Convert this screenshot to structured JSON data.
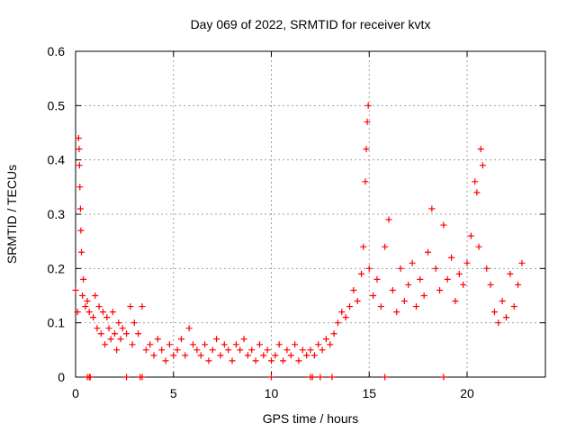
{
  "chart_data": {
    "type": "scatter",
    "title": "Day 069 of 2022, SRMTID for receiver kvtx",
    "xlabel": "GPS time / hours",
    "ylabel": "SRMTID / TECUs",
    "xlim": [
      0,
      24
    ],
    "ylim": [
      0,
      0.6
    ],
    "x_ticks": [
      0,
      5,
      10,
      15,
      20
    ],
    "x_tick_labels": [
      "0",
      "5",
      "10",
      "15",
      "20"
    ],
    "y_ticks": [
      0,
      0.1,
      0.2,
      0.3,
      0.4,
      0.5,
      0.6
    ],
    "y_tick_labels": [
      "0",
      "0.1",
      "0.2",
      "0.3",
      "0.4",
      "0.5",
      "0.6"
    ],
    "grid": true,
    "marker": "+",
    "color": "#ff0000",
    "series": [
      {
        "name": "SRMTID",
        "points": [
          [
            0.0,
            0.16
          ],
          [
            0.1,
            0.12
          ],
          [
            0.15,
            0.44
          ],
          [
            0.18,
            0.42
          ],
          [
            0.2,
            0.39
          ],
          [
            0.22,
            0.35
          ],
          [
            0.25,
            0.31
          ],
          [
            0.27,
            0.27
          ],
          [
            0.3,
            0.23
          ],
          [
            0.35,
            0.15
          ],
          [
            0.4,
            0.18
          ],
          [
            0.5,
            0.13
          ],
          [
            0.6,
            0.14
          ],
          [
            0.7,
            0.12
          ],
          [
            0.9,
            0.11
          ],
          [
            1.0,
            0.15
          ],
          [
            1.1,
            0.09
          ],
          [
            1.2,
            0.13
          ],
          [
            1.3,
            0.08
          ],
          [
            1.4,
            0.12
          ],
          [
            1.5,
            0.06
          ],
          [
            1.6,
            0.11
          ],
          [
            1.7,
            0.09
          ],
          [
            1.8,
            0.07
          ],
          [
            1.9,
            0.12
          ],
          [
            2.0,
            0.08
          ],
          [
            2.1,
            0.05
          ],
          [
            2.2,
            0.1
          ],
          [
            2.3,
            0.07
          ],
          [
            2.4,
            0.09
          ],
          [
            2.6,
            0.08
          ],
          [
            2.8,
            0.13
          ],
          [
            2.9,
            0.06
          ],
          [
            3.0,
            0.1
          ],
          [
            3.2,
            0.08
          ],
          [
            3.4,
            0.13
          ],
          [
            3.6,
            0.05
          ],
          [
            3.8,
            0.06
          ],
          [
            4.0,
            0.04
          ],
          [
            4.2,
            0.07
          ],
          [
            4.4,
            0.05
          ],
          [
            4.6,
            0.03
          ],
          [
            4.8,
            0.06
          ],
          [
            5.0,
            0.04
          ],
          [
            5.2,
            0.05
          ],
          [
            5.4,
            0.07
          ],
          [
            5.6,
            0.04
          ],
          [
            5.8,
            0.09
          ],
          [
            6.0,
            0.06
          ],
          [
            6.2,
            0.05
          ],
          [
            6.4,
            0.04
          ],
          [
            6.6,
            0.06
          ],
          [
            6.8,
            0.03
          ],
          [
            7.0,
            0.05
          ],
          [
            7.2,
            0.07
          ],
          [
            7.4,
            0.04
          ],
          [
            7.6,
            0.06
          ],
          [
            7.8,
            0.05
          ],
          [
            8.0,
            0.03
          ],
          [
            8.2,
            0.06
          ],
          [
            8.4,
            0.05
          ],
          [
            8.6,
            0.07
          ],
          [
            8.8,
            0.04
          ],
          [
            9.0,
            0.05
          ],
          [
            9.2,
            0.03
          ],
          [
            9.4,
            0.06
          ],
          [
            9.6,
            0.04
          ],
          [
            9.8,
            0.05
          ],
          [
            10.0,
            0.03
          ],
          [
            10.2,
            0.04
          ],
          [
            10.4,
            0.06
          ],
          [
            10.6,
            0.03
          ],
          [
            10.8,
            0.05
          ],
          [
            11.0,
            0.04
          ],
          [
            11.2,
            0.06
          ],
          [
            11.4,
            0.03
          ],
          [
            11.6,
            0.05
          ],
          [
            11.8,
            0.04
          ],
          [
            12.0,
            0.05
          ],
          [
            12.2,
            0.04
          ],
          [
            12.4,
            0.06
          ],
          [
            12.6,
            0.05
          ],
          [
            12.8,
            0.07
          ],
          [
            13.0,
            0.06
          ],
          [
            13.2,
            0.08
          ],
          [
            13.4,
            0.1
          ],
          [
            13.6,
            0.12
          ],
          [
            13.8,
            0.11
          ],
          [
            14.0,
            0.13
          ],
          [
            14.2,
            0.16
          ],
          [
            14.4,
            0.14
          ],
          [
            14.6,
            0.19
          ],
          [
            14.7,
            0.24
          ],
          [
            14.8,
            0.36
          ],
          [
            14.85,
            0.42
          ],
          [
            14.9,
            0.47
          ],
          [
            14.95,
            0.5
          ],
          [
            15.0,
            0.2
          ],
          [
            15.2,
            0.15
          ],
          [
            15.4,
            0.18
          ],
          [
            15.6,
            0.13
          ],
          [
            15.8,
            0.24
          ],
          [
            16.0,
            0.29
          ],
          [
            16.2,
            0.16
          ],
          [
            16.4,
            0.12
          ],
          [
            16.6,
            0.2
          ],
          [
            16.8,
            0.14
          ],
          [
            17.0,
            0.17
          ],
          [
            17.2,
            0.21
          ],
          [
            17.4,
            0.13
          ],
          [
            17.6,
            0.18
          ],
          [
            17.8,
            0.15
          ],
          [
            18.0,
            0.23
          ],
          [
            18.2,
            0.31
          ],
          [
            18.4,
            0.2
          ],
          [
            18.6,
            0.16
          ],
          [
            18.8,
            0.28
          ],
          [
            19.0,
            0.18
          ],
          [
            19.2,
            0.22
          ],
          [
            19.4,
            0.14
          ],
          [
            19.6,
            0.19
          ],
          [
            19.8,
            0.17
          ],
          [
            20.0,
            0.21
          ],
          [
            20.2,
            0.26
          ],
          [
            20.4,
            0.36
          ],
          [
            20.5,
            0.34
          ],
          [
            20.6,
            0.24
          ],
          [
            20.7,
            0.42
          ],
          [
            20.8,
            0.39
          ],
          [
            21.0,
            0.2
          ],
          [
            21.2,
            0.17
          ],
          [
            21.4,
            0.12
          ],
          [
            21.6,
            0.1
          ],
          [
            21.8,
            0.14
          ],
          [
            22.0,
            0.11
          ],
          [
            22.2,
            0.19
          ],
          [
            22.4,
            0.13
          ],
          [
            22.6,
            0.17
          ],
          [
            22.8,
            0.21
          ]
        ]
      }
    ],
    "zero_markers_x": [
      0.6,
      0.7,
      0.75,
      2.6,
      3.3,
      3.4,
      10.0,
      12.0,
      12.1,
      12.5,
      13.1,
      15.8,
      18.8
    ]
  }
}
